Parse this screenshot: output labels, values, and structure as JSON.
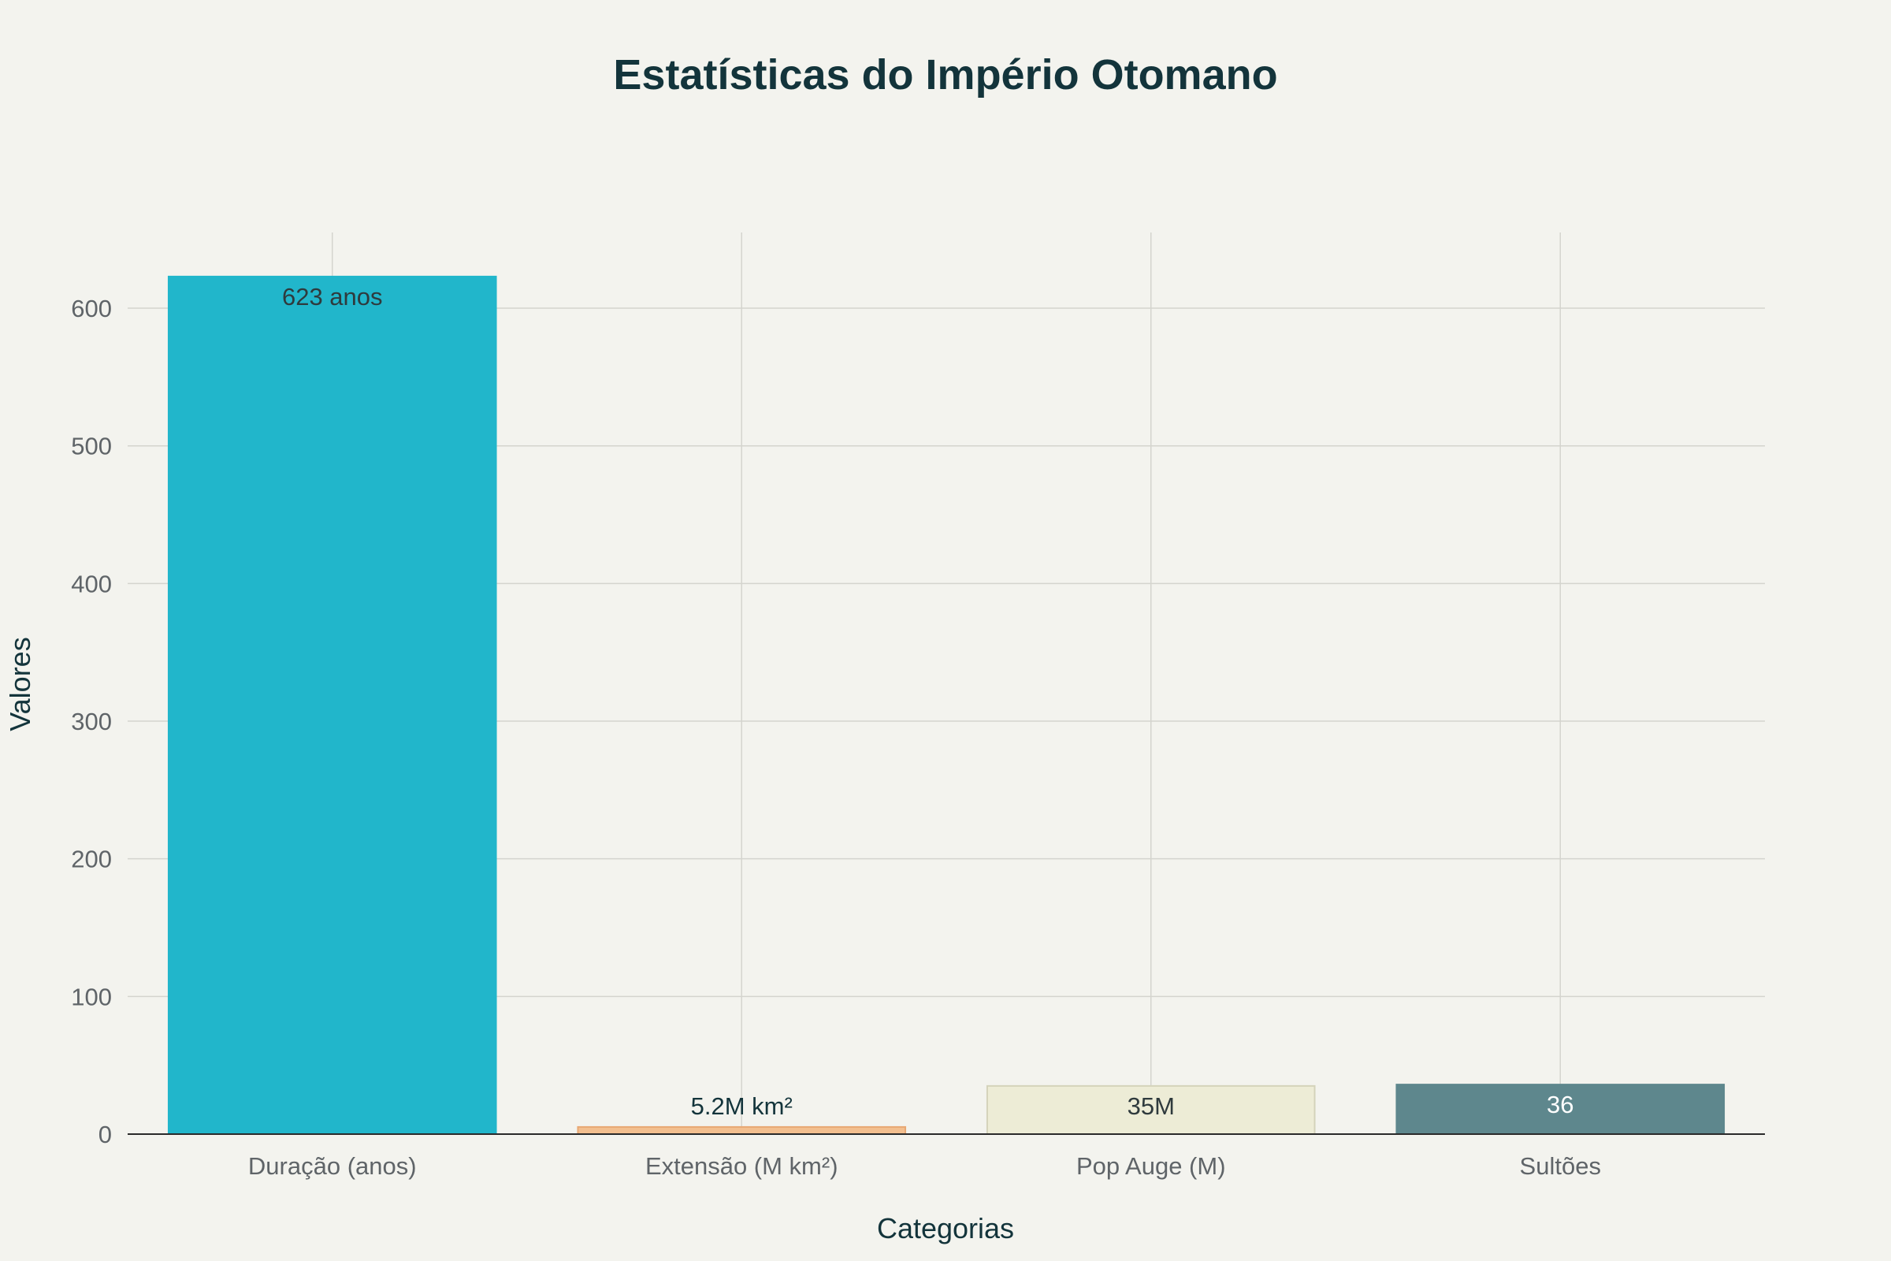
{
  "colors": {
    "background": "#f3f3ee",
    "grid": "#d4d4ce",
    "axis_line": "#2a2a2a",
    "title": "#13343b",
    "tick_text": "#5f6468",
    "label_text": "#13343b"
  },
  "chart_data": {
    "type": "bar",
    "title": "Estatísticas do Império Otomano",
    "xlabel": "Categorias",
    "ylabel": "Valores",
    "ylim": [
      0,
      655
    ],
    "yticks": [
      0,
      100,
      200,
      300,
      400,
      500,
      600
    ],
    "grid": true,
    "categories": [
      "Duração (anos)",
      "Extensão (M km²)",
      "Pop Auge (M)",
      "Sultões"
    ],
    "values": [
      623,
      5.2,
      35,
      36
    ],
    "data_labels": [
      "623 anos",
      "5.2M km²",
      "35M",
      "36"
    ],
    "bar_colors": [
      "#21b6cb",
      "#f3bf8f",
      "#edecd6",
      "#5e878d"
    ],
    "bar_border_colors": [
      "#21b6cb",
      "#e8a874",
      "#d4d3bb",
      "#5e878d"
    ],
    "label_colors": [
      "#2f3a3d",
      "#13343b",
      "#2f3a3d",
      "#ffffff"
    ],
    "label_positions": [
      "inside",
      "outside",
      "inside",
      "inside"
    ]
  }
}
